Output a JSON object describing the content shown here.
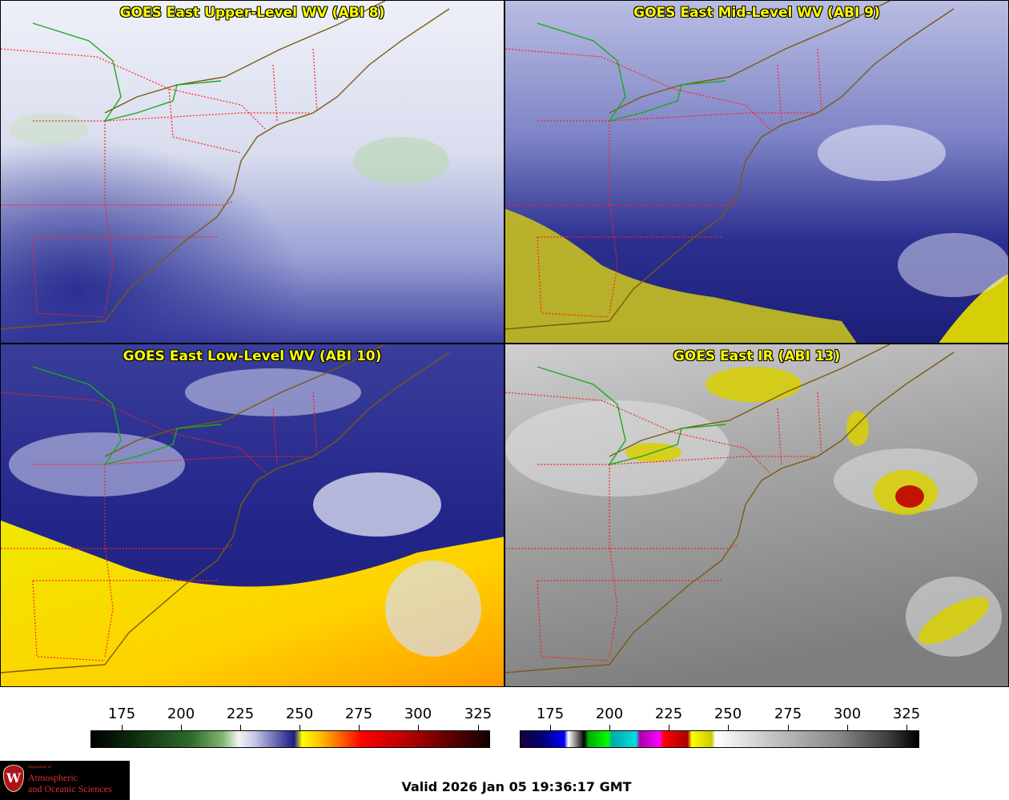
{
  "panels": [
    {
      "id": "upper",
      "title": "GOES East Upper-Level WV (ABI 8)",
      "product": "upper-level water vapor"
    },
    {
      "id": "mid",
      "title": "GOES East Mid-Level WV (ABI 9)",
      "product": "mid-level water vapor"
    },
    {
      "id": "low",
      "title": "GOES East Low-Level WV (ABI 10)",
      "product": "low-level water vapor"
    },
    {
      "id": "ir",
      "title": "GOES East IR (ABI 13)",
      "product": "infrared"
    }
  ],
  "colorbars": {
    "wv": {
      "ticks": [
        "175",
        "200",
        "225",
        "250",
        "275",
        "300",
        "325"
      ]
    },
    "ir": {
      "ticks": [
        "175",
        "200",
        "225",
        "250",
        "275",
        "300",
        "325"
      ]
    }
  },
  "logo": {
    "seal_letter": "W",
    "dept_line": "Department of",
    "name_line1": "Atmospheric",
    "name_line2": "and Oceanic Sciences"
  },
  "valid_time": "Valid 2026 Jan 05 19:36:17 GMT",
  "colors": {
    "title_text": "#ffff00",
    "coastline": "#7a5a10",
    "state_borders": "#ff2020",
    "lake_line": "#1aaa1a"
  }
}
